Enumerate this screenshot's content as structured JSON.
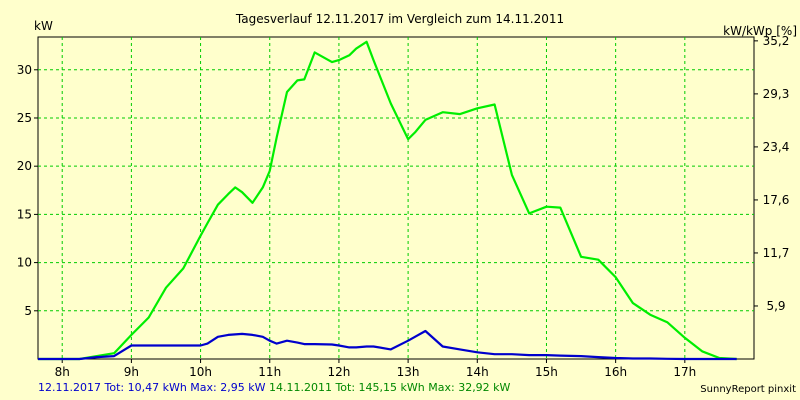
{
  "chart_data": {
    "type": "line",
    "title": "Tagesverlauf 12.11.2017 im Vergleich zum 14.11.2011",
    "ylabel": "kW",
    "y2label": "kW/kWp [%]",
    "xlim": [
      7.65,
      18.0
    ],
    "ylim": [
      0,
      33.4
    ],
    "x_ticks": [
      {
        "value": 8,
        "label": "8h"
      },
      {
        "value": 9,
        "label": "9h"
      },
      {
        "value": 10,
        "label": "10h"
      },
      {
        "value": 11,
        "label": "11h"
      },
      {
        "value": 12,
        "label": "12h"
      },
      {
        "value": 13,
        "label": "13h"
      },
      {
        "value": 14,
        "label": "14h"
      },
      {
        "value": 15,
        "label": "15h"
      },
      {
        "value": 16,
        "label": "16h"
      },
      {
        "value": 17,
        "label": "17h"
      }
    ],
    "y_ticks": [
      {
        "value": 5,
        "label": "5"
      },
      {
        "value": 10,
        "label": "10"
      },
      {
        "value": 15,
        "label": "15"
      },
      {
        "value": 20,
        "label": "20"
      },
      {
        "value": 25,
        "label": "25"
      },
      {
        "value": 30,
        "label": "30"
      }
    ],
    "y2_ticks": [
      {
        "value": 5.5,
        "label": "5,9"
      },
      {
        "value": 11,
        "label": "11,7"
      },
      {
        "value": 16.5,
        "label": "17,6"
      },
      {
        "value": 22,
        "label": "23,4"
      },
      {
        "value": 27.5,
        "label": "29,3"
      },
      {
        "value": 33,
        "label": "35,2"
      }
    ],
    "grid": true,
    "series": [
      {
        "name": "14.11.2011",
        "color": "#00ee00",
        "x": [
          7.65,
          8.25,
          8.5,
          8.75,
          9.0,
          9.25,
          9.5,
          9.75,
          10.0,
          10.1,
          10.25,
          10.4,
          10.5,
          10.6,
          10.75,
          10.9,
          11.0,
          11.1,
          11.25,
          11.4,
          11.5,
          11.65,
          11.9,
          12.0,
          12.15,
          12.25,
          12.4,
          12.5,
          12.75,
          13.0,
          13.1,
          13.25,
          13.5,
          13.75,
          14.0,
          14.25,
          14.5,
          14.75,
          15.0,
          15.2,
          15.5,
          15.75,
          16.0,
          16.25,
          16.5,
          16.75,
          17.0,
          17.25,
          17.5,
          17.75
        ],
        "values": [
          0,
          0,
          0.3,
          0.6,
          2.5,
          4.3,
          7.4,
          9.4,
          12.8,
          14.1,
          16.0,
          17.1,
          17.8,
          17.3,
          16.2,
          17.8,
          19.5,
          23.0,
          27.7,
          28.9,
          29.0,
          31.8,
          30.8,
          31.0,
          31.5,
          32.2,
          32.9,
          31.0,
          26.5,
          22.8,
          23.5,
          24.8,
          25.6,
          25.4,
          26.0,
          26.4,
          19.1,
          15.1,
          15.8,
          15.7,
          10.6,
          10.3,
          8.5,
          5.8,
          4.6,
          3.8,
          2.2,
          0.8,
          0.1,
          0
        ]
      },
      {
        "name": "12.11.2017",
        "color": "#0000cc",
        "x": [
          7.65,
          8.25,
          8.5,
          8.75,
          9.0,
          9.25,
          9.5,
          9.75,
          10.0,
          10.1,
          10.25,
          10.4,
          10.5,
          10.6,
          10.75,
          10.9,
          11.0,
          11.1,
          11.25,
          11.4,
          11.5,
          11.65,
          11.9,
          12.0,
          12.15,
          12.25,
          12.4,
          12.5,
          12.75,
          13.0,
          13.1,
          13.25,
          13.5,
          13.75,
          14.0,
          14.25,
          14.5,
          14.75,
          15.0,
          15.2,
          15.5,
          15.75,
          16.0,
          16.25,
          16.5,
          16.75,
          17.0,
          17.25,
          17.5,
          17.75
        ],
        "values": [
          0,
          0,
          0.2,
          0.3,
          1.4,
          1.4,
          1.4,
          1.4,
          1.4,
          1.6,
          2.3,
          2.5,
          2.55,
          2.6,
          2.5,
          2.3,
          1.9,
          1.6,
          1.9,
          1.7,
          1.55,
          1.55,
          1.5,
          1.4,
          1.2,
          1.2,
          1.3,
          1.3,
          1.0,
          1.9,
          2.3,
          2.9,
          1.3,
          1.0,
          0.7,
          0.5,
          0.5,
          0.4,
          0.4,
          0.35,
          0.3,
          0.2,
          0.1,
          0.05,
          0.05,
          0.02,
          0,
          0,
          0,
          0
        ]
      }
    ]
  },
  "footer": {
    "s1_date": "12.11.2017",
    "s1_stats": "Tot: 10,47 kWh Max: 2,95 kW",
    "s2_date": "14.11.2011",
    "s2_stats": "Tot: 145,15 kWh Max: 32,92 kW",
    "brand": "SunnyReport pinxit"
  },
  "colors": {
    "background": "#ffffcc",
    "grid": "#00cc00",
    "series1": "#0000cc",
    "series2": "#00ee00"
  }
}
